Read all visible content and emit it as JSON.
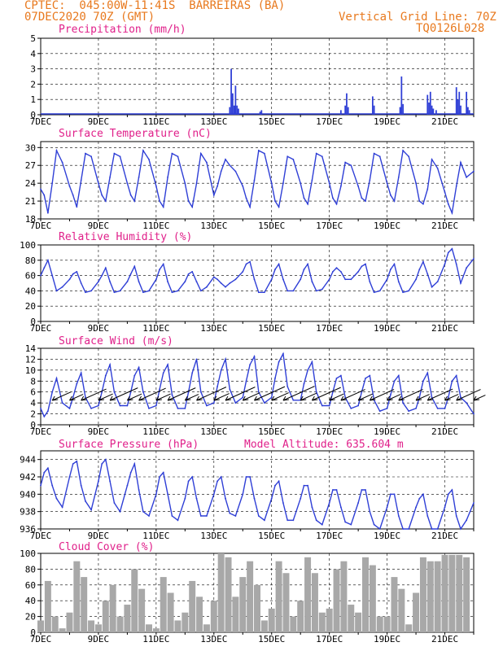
{
  "header": {
    "line1": "CPTEC:  045:00W-11:41S  BARREIRAS (BA)",
    "line2": "07DEC2020 70Z (GMT)",
    "grid_note": "Vertical Grid Line: 70Z",
    "code": "TQ0126L028"
  },
  "date_ticks": [
    "7DEC",
    "9DEC",
    "11DEC",
    "13DEC",
    "15DEC",
    "17DEC",
    "19DEC",
    "21DEC"
  ],
  "panels": {
    "precip": {
      "title": "Precipitation (mm/h)",
      "yticks": [
        "0",
        "1",
        "2",
        "3",
        "4",
        "5"
      ]
    },
    "temp": {
      "title": "Surface Temperature (nC)",
      "yticks": [
        "18",
        "21",
        "24",
        "27",
        "30"
      ]
    },
    "rh": {
      "title": "Relative Humidity (%)",
      "yticks": [
        "0",
        "20",
        "40",
        "60",
        "80",
        "100"
      ]
    },
    "wind": {
      "title": "Surface Wind (m/s)",
      "yticks": [
        "0",
        "2",
        "4",
        "6",
        "8",
        "10",
        "12",
        "14"
      ]
    },
    "press": {
      "title": "Surface Pressure (hPa)",
      "extra": "Model Altitude: 635.604 m",
      "yticks": [
        "936",
        "938",
        "940",
        "942",
        "944"
      ]
    },
    "cloud": {
      "title": "Cloud Cover (%)",
      "yticks": [
        "0",
        "20",
        "40",
        "60",
        "80",
        "100"
      ]
    }
  },
  "colors": {
    "line": "#2f3fd6",
    "bars": "#a8a8a8",
    "header": "#e8791e",
    "title": "#e0208a"
  },
  "chart_data": [
    {
      "type": "bar",
      "name": "precipitation",
      "ylabel": "Precipitation (mm/h)",
      "ylim": [
        0,
        5
      ],
      "x_range_days": [
        7,
        22
      ],
      "x": [
        13.55,
        13.6,
        13.65,
        13.7,
        13.75,
        13.8,
        13.85,
        14.6,
        14.65,
        17.4,
        17.55,
        17.6,
        17.65,
        18.5,
        18.55,
        19.45,
        19.5,
        19.55,
        20.4,
        20.45,
        20.5,
        20.55,
        20.6,
        20.7,
        21.4,
        21.45,
        21.5,
        21.55,
        21.75,
        21.8,
        21.85
      ],
      "values": [
        0.5,
        3.0,
        1.4,
        0.6,
        1.9,
        0.6,
        0.4,
        0.2,
        0.3,
        0.3,
        0.6,
        1.4,
        0.5,
        1.2,
        0.6,
        0.5,
        2.5,
        0.7,
        1.3,
        0.8,
        1.5,
        0.6,
        0.4,
        0.3,
        1.8,
        1.0,
        1.5,
        0.6,
        1.5,
        0.5,
        0.3
      ]
    },
    {
      "type": "line",
      "name": "surface temperature",
      "ylabel": "Surface Temperature (nC)",
      "ylim": [
        18,
        31
      ],
      "x": [
        7.0,
        7.12,
        7.25,
        7.4,
        7.55,
        7.75,
        8.0,
        8.12,
        8.25,
        8.4,
        8.55,
        8.75,
        9.0,
        9.12,
        9.25,
        9.4,
        9.55,
        9.75,
        10.0,
        10.12,
        10.25,
        10.4,
        10.55,
        10.75,
        11.0,
        11.12,
        11.25,
        11.4,
        11.55,
        11.75,
        12.0,
        12.12,
        12.25,
        12.4,
        12.55,
        12.75,
        13.0,
        13.12,
        13.25,
        13.4,
        13.55,
        13.75,
        14.0,
        14.12,
        14.25,
        14.4,
        14.55,
        14.75,
        15.0,
        15.12,
        15.25,
        15.4,
        15.55,
        15.75,
        16.0,
        16.12,
        16.25,
        16.4,
        16.55,
        16.75,
        17.0,
        17.12,
        17.25,
        17.4,
        17.55,
        17.75,
        18.0,
        18.12,
        18.25,
        18.4,
        18.55,
        18.75,
        19.0,
        19.12,
        19.25,
        19.4,
        19.55,
        19.75,
        20.0,
        20.12,
        20.25,
        20.4,
        20.55,
        20.75,
        21.0,
        21.12,
        21.25,
        21.4,
        21.55,
        21.75,
        22.0
      ],
      "values": [
        23.0,
        22.0,
        19.0,
        24.0,
        29.5,
        27.5,
        23.5,
        22.0,
        20.0,
        24.5,
        29.0,
        28.5,
        24.0,
        22.0,
        21.0,
        25.0,
        29.0,
        28.5,
        24.0,
        22.0,
        21.0,
        25.0,
        29.5,
        28.0,
        23.5,
        21.0,
        20.0,
        25.0,
        29.0,
        28.5,
        24.0,
        21.0,
        20.0,
        24.0,
        29.0,
        27.5,
        22.0,
        23.5,
        26.0,
        28.0,
        27.0,
        26.0,
        23.5,
        21.5,
        20.0,
        24.5,
        29.5,
        29.0,
        24.0,
        21.0,
        20.0,
        24.0,
        28.5,
        28.0,
        24.0,
        21.5,
        20.5,
        24.5,
        29.0,
        28.5,
        24.0,
        21.5,
        20.5,
        23.5,
        27.5,
        27.0,
        23.5,
        21.5,
        21.0,
        24.5,
        29.0,
        28.5,
        24.0,
        22.0,
        21.0,
        25.0,
        29.5,
        28.5,
        24.0,
        21.0,
        20.5,
        23.0,
        28.0,
        26.5,
        22.5,
        20.5,
        19.0,
        23.5,
        27.5,
        25.0,
        26.0
      ]
    },
    {
      "type": "line",
      "name": "relative humidity",
      "ylabel": "Relative Humidity (%)",
      "ylim": [
        0,
        100
      ],
      "x": [
        7.0,
        7.12,
        7.25,
        7.4,
        7.55,
        7.75,
        8.0,
        8.12,
        8.25,
        8.4,
        8.55,
        8.75,
        9.0,
        9.12,
        9.25,
        9.4,
        9.55,
        9.75,
        10.0,
        10.12,
        10.25,
        10.4,
        10.55,
        10.75,
        11.0,
        11.12,
        11.25,
        11.4,
        11.55,
        11.75,
        12.0,
        12.12,
        12.25,
        12.4,
        12.55,
        12.75,
        13.0,
        13.12,
        13.25,
        13.4,
        13.55,
        13.75,
        14.0,
        14.12,
        14.25,
        14.4,
        14.55,
        14.75,
        15.0,
        15.12,
        15.25,
        15.4,
        15.55,
        15.75,
        16.0,
        16.12,
        16.25,
        16.4,
        16.55,
        16.75,
        17.0,
        17.12,
        17.25,
        17.4,
        17.55,
        17.75,
        18.0,
        18.12,
        18.25,
        18.4,
        18.55,
        18.75,
        19.0,
        19.12,
        19.25,
        19.4,
        19.55,
        19.75,
        20.0,
        20.12,
        20.25,
        20.4,
        20.55,
        20.75,
        21.0,
        21.12,
        21.25,
        21.4,
        21.55,
        21.75,
        22.0
      ],
      "values": [
        60,
        70,
        80,
        60,
        40,
        45,
        55,
        62,
        65,
        50,
        38,
        40,
        52,
        60,
        70,
        52,
        38,
        40,
        52,
        62,
        72,
        52,
        38,
        40,
        55,
        68,
        75,
        52,
        38,
        40,
        52,
        62,
        65,
        52,
        40,
        45,
        58,
        55,
        50,
        45,
        50,
        55,
        65,
        75,
        78,
        55,
        38,
        38,
        55,
        68,
        75,
        55,
        40,
        40,
        55,
        68,
        75,
        52,
        40,
        42,
        55,
        65,
        70,
        65,
        55,
        55,
        65,
        72,
        75,
        52,
        38,
        40,
        55,
        68,
        75,
        52,
        38,
        40,
        55,
        68,
        78,
        62,
        45,
        52,
        75,
        90,
        95,
        75,
        50,
        70,
        82
      ]
    },
    {
      "type": "line",
      "name": "surface wind speed",
      "ylabel": "Surface Wind (m/s)",
      "ylim": [
        0,
        14
      ],
      "x": [
        7.0,
        7.12,
        7.25,
        7.4,
        7.55,
        7.75,
        8.0,
        8.12,
        8.25,
        8.4,
        8.55,
        8.75,
        9.0,
        9.12,
        9.25,
        9.4,
        9.55,
        9.75,
        10.0,
        10.12,
        10.25,
        10.4,
        10.55,
        10.75,
        11.0,
        11.12,
        11.25,
        11.4,
        11.55,
        11.75,
        12.0,
        12.12,
        12.25,
        12.4,
        12.55,
        12.75,
        13.0,
        13.12,
        13.25,
        13.4,
        13.55,
        13.75,
        14.0,
        14.12,
        14.25,
        14.4,
        14.55,
        14.75,
        15.0,
        15.12,
        15.25,
        15.4,
        15.55,
        15.75,
        16.0,
        16.12,
        16.25,
        16.4,
        16.55,
        16.75,
        17.0,
        17.12,
        17.25,
        17.4,
        17.55,
        17.75,
        18.0,
        18.12,
        18.25,
        18.4,
        18.55,
        18.75,
        19.0,
        19.12,
        19.25,
        19.4,
        19.55,
        19.75,
        20.0,
        20.12,
        20.25,
        20.4,
        20.55,
        20.75,
        21.0,
        21.12,
        21.25,
        21.4,
        21.55,
        21.75,
        22.0
      ],
      "values": [
        3.0,
        1.5,
        2.5,
        6.0,
        8.5,
        4.0,
        3.0,
        5.0,
        7.5,
        9.5,
        5.0,
        3.0,
        3.5,
        6.0,
        9.0,
        11.0,
        6.0,
        3.5,
        3.5,
        6.0,
        9.0,
        10.5,
        6.0,
        3.0,
        3.5,
        6.5,
        9.5,
        11.0,
        5.5,
        3.0,
        3.0,
        6.0,
        9.5,
        12.0,
        6.0,
        3.5,
        4.0,
        7.0,
        10.0,
        12.0,
        6.5,
        4.0,
        5.0,
        8.0,
        11.0,
        12.5,
        6.0,
        4.0,
        5.0,
        8.5,
        11.5,
        13.0,
        7.0,
        4.5,
        4.5,
        7.5,
        10.0,
        11.5,
        6.0,
        3.5,
        3.5,
        6.0,
        8.5,
        9.0,
        5.0,
        3.0,
        3.5,
        6.0,
        8.5,
        9.0,
        4.5,
        2.5,
        3.0,
        5.5,
        8.0,
        9.0,
        4.0,
        2.5,
        3.0,
        5.0,
        8.0,
        9.5,
        5.0,
        3.0,
        3.0,
        5.0,
        8.0,
        9.0,
        5.0,
        4.0,
        2.0
      ]
    },
    {
      "type": "line",
      "name": "surface pressure",
      "ylabel": "Surface Pressure (hPa)",
      "ylim": [
        936,
        945
      ],
      "x": [
        7.0,
        7.12,
        7.25,
        7.4,
        7.55,
        7.75,
        8.0,
        8.12,
        8.25,
        8.4,
        8.55,
        8.75,
        9.0,
        9.12,
        9.25,
        9.4,
        9.55,
        9.75,
        10.0,
        10.12,
        10.25,
        10.4,
        10.55,
        10.75,
        11.0,
        11.12,
        11.25,
        11.4,
        11.55,
        11.75,
        12.0,
        12.12,
        12.25,
        12.4,
        12.55,
        12.75,
        13.0,
        13.12,
        13.25,
        13.4,
        13.55,
        13.75,
        14.0,
        14.12,
        14.25,
        14.4,
        14.55,
        14.75,
        15.0,
        15.12,
        15.25,
        15.4,
        15.55,
        15.75,
        16.0,
        16.12,
        16.25,
        16.4,
        16.55,
        16.75,
        17.0,
        17.12,
        17.25,
        17.4,
        17.55,
        17.75,
        18.0,
        18.12,
        18.25,
        18.4,
        18.55,
        18.75,
        19.0,
        19.12,
        19.25,
        19.4,
        19.55,
        19.75,
        20.0,
        20.12,
        20.25,
        20.4,
        20.55,
        20.75,
        21.0,
        21.12,
        21.25,
        21.4,
        21.55,
        21.75,
        22.0
      ],
      "values": [
        941.0,
        942.5,
        943.0,
        941.0,
        939.5,
        938.5,
        942.0,
        943.5,
        943.8,
        941.0,
        939.2,
        938.2,
        941.5,
        943.5,
        944.0,
        941.5,
        939.0,
        938.0,
        941.0,
        942.5,
        943.5,
        940.5,
        938.0,
        937.5,
        940.0,
        942.0,
        942.5,
        940.0,
        937.5,
        937.0,
        939.5,
        941.5,
        942.0,
        939.5,
        937.5,
        937.5,
        940.0,
        941.5,
        942.0,
        939.5,
        937.8,
        937.5,
        940.0,
        942.0,
        942.0,
        939.5,
        937.5,
        937.0,
        939.5,
        941.0,
        941.5,
        939.0,
        937.0,
        937.0,
        939.5,
        941.0,
        941.0,
        938.5,
        937.0,
        936.5,
        939.0,
        940.5,
        940.5,
        938.5,
        936.8,
        936.5,
        939.0,
        940.5,
        940.5,
        938.0,
        936.5,
        936.0,
        938.5,
        940.0,
        940.0,
        937.5,
        936.0,
        936.0,
        938.5,
        939.5,
        940.0,
        937.5,
        936.0,
        936.0,
        938.5,
        940.0,
        940.5,
        937.5,
        935.5,
        937.0,
        939.0
      ]
    },
    {
      "type": "bar",
      "name": "cloud cover",
      "ylabel": "Cloud Cover (%)",
      "ylim": [
        0,
        100
      ],
      "x_range_days": [
        7,
        22
      ],
      "x": [
        7.0,
        7.25,
        7.5,
        7.75,
        8.0,
        8.25,
        8.5,
        8.75,
        9.0,
        9.25,
        9.5,
        9.75,
        10.0,
        10.25,
        10.5,
        10.75,
        11.0,
        11.25,
        11.5,
        11.75,
        12.0,
        12.25,
        12.5,
        12.75,
        13.0,
        13.25,
        13.5,
        13.75,
        14.0,
        14.25,
        14.5,
        14.75,
        15.0,
        15.25,
        15.5,
        15.75,
        16.0,
        16.25,
        16.5,
        16.75,
        17.0,
        17.25,
        17.5,
        17.75,
        18.0,
        18.25,
        18.5,
        18.75,
        19.0,
        19.25,
        19.5,
        19.75,
        20.0,
        20.25,
        20.5,
        20.75,
        21.0,
        21.25,
        21.5,
        21.75
      ],
      "values": [
        15,
        65,
        20,
        5,
        25,
        90,
        70,
        15,
        10,
        40,
        60,
        20,
        35,
        80,
        55,
        10,
        5,
        70,
        50,
        15,
        25,
        65,
        45,
        10,
        40,
        100,
        95,
        45,
        70,
        90,
        60,
        15,
        30,
        90,
        75,
        20,
        40,
        95,
        75,
        25,
        30,
        80,
        90,
        35,
        25,
        95,
        85,
        20,
        20,
        70,
        55,
        10,
        50,
        95,
        90,
        90,
        98,
        98,
        98,
        95
      ]
    }
  ]
}
